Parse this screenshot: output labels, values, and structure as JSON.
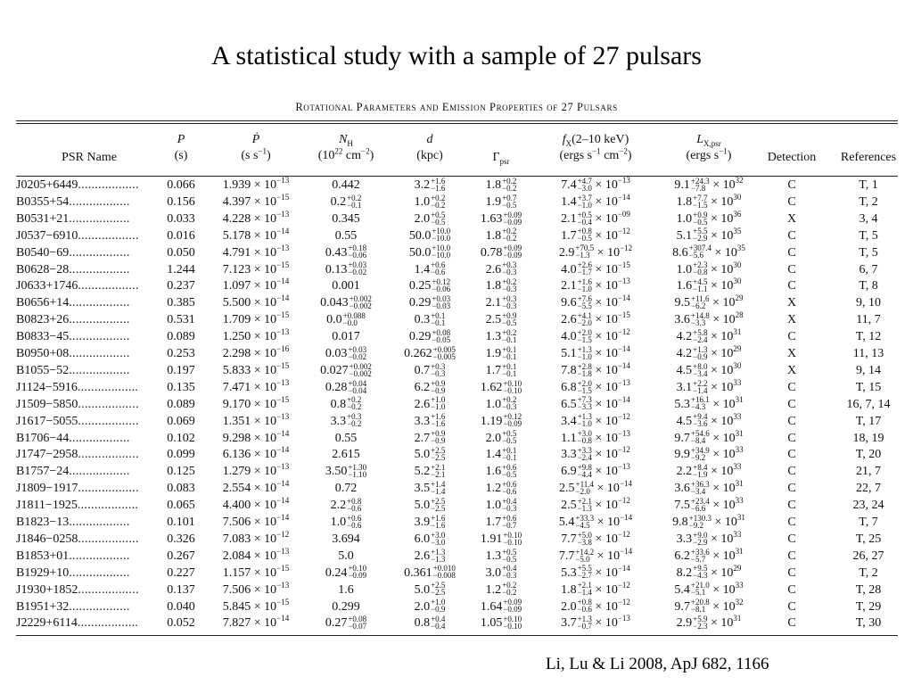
{
  "slide": {
    "title": "A statistical study with a sample of 27 pulsars",
    "citation": "Li, Lu & Li 2008, ApJ 682, 1166"
  },
  "table": {
    "caption": "Rotational Parameters and Emission Properties of 27 Pulsars",
    "headers": {
      "name": "PSR Name",
      "p_l1": "P",
      "p_l2": "(s)",
      "pdot_l1": "Ṗ",
      "pdot_l2": "(s s",
      "nh_l1": "N",
      "nh_sub": "H",
      "nh_l2": "(10",
      "d_l1": "d",
      "d_l2": "(kpc)",
      "gamma": "Γ",
      "gamma_sub": "psr",
      "fx_l1": "f",
      "fx_sub": "X",
      "fx_l1b": "(2–10 keV)",
      "fx_l2": "(ergs s",
      "lx_l1": "L",
      "lx_sub": "X,psr",
      "lx_l2": "(ergs s",
      "detection": "Detection",
      "references": "References"
    },
    "rows": [
      {
        "name": "J0205+6449",
        "p": "0.066",
        "pdot_m": "1.939",
        "pdot_e": "−13",
        "nh": "0.442",
        "nh_up": "",
        "nh_lo": "",
        "d": "3.2",
        "d_up": "+1.6",
        "d_lo": "−1.6",
        "g": "1.8",
        "g_up": "+0.2",
        "g_lo": "−0.2",
        "fx": "7.4",
        "fx_up": "+4.7",
        "fx_lo": "−3.0",
        "fx_e": "−13",
        "lx": "9.1",
        "lx_up": "+24.3",
        "lx_lo": "−7.8",
        "lx_e": "32",
        "det": "C",
        "ref": "T, 1"
      },
      {
        "name": "B0355+54",
        "p": "0.156",
        "pdot_m": "4.397",
        "pdot_e": "−15",
        "nh": "0.2",
        "nh_up": "+0.2",
        "nh_lo": "−0.1",
        "d": "1.0",
        "d_up": "+0.2",
        "d_lo": "−0.2",
        "g": "1.9",
        "g_up": "+0.7",
        "g_lo": "−0.5",
        "fx": "1.4",
        "fx_up": "+3.7",
        "fx_lo": "−1.0",
        "fx_e": "−14",
        "lx": "1.8",
        "lx_up": "+7.7",
        "lx_lo": "−1.5",
        "lx_e": "30",
        "det": "C",
        "ref": "T, 2"
      },
      {
        "name": "B0531+21",
        "p": "0.033",
        "pdot_m": "4.228",
        "pdot_e": "−13",
        "nh": "0.345",
        "nh_up": "",
        "nh_lo": "",
        "d": "2.0",
        "d_up": "+0.5",
        "d_lo": "−0.5",
        "g": "1.63",
        "g_up": "+0.09",
        "g_lo": "−0.09",
        "fx": "2.1",
        "fx_up": "+0.5",
        "fx_lo": "−0.4",
        "fx_e": "−09",
        "lx": "1.0",
        "lx_up": "+0.9",
        "lx_lo": "−0.5",
        "lx_e": "36",
        "det": "X",
        "ref": "3, 4"
      },
      {
        "name": "J0537−6910",
        "p": "0.016",
        "pdot_m": "5.178",
        "pdot_e": "−14",
        "nh": "0.55",
        "nh_up": "",
        "nh_lo": "",
        "d": "50.0",
        "d_up": "+10.0",
        "d_lo": "−10.0",
        "g": "1.8",
        "g_up": "+0.2",
        "g_lo": "−0.2",
        "fx": "1.7",
        "fx_up": "+0.8",
        "fx_lo": "−0.5",
        "fx_e": "−12",
        "lx": "5.1",
        "lx_up": "+5.5",
        "lx_lo": "−2.9",
        "lx_e": "35",
        "det": "C",
        "ref": "T, 5"
      },
      {
        "name": "B0540−69",
        "p": "0.050",
        "pdot_m": "4.791",
        "pdot_e": "−13",
        "nh": "0.43",
        "nh_up": "+0.18",
        "nh_lo": "−0.06",
        "d": "50.0",
        "d_up": "+10.0",
        "d_lo": "−10.0",
        "g": "0.78",
        "g_up": "+0.09",
        "g_lo": "−0.09",
        "fx": "2.9",
        "fx_up": "+70.5",
        "fx_lo": "−1.3",
        "fx_e": "−12",
        "lx": "8.6",
        "lx_up": "+307.4",
        "lx_lo": "−5.6",
        "lx_e": "35",
        "det": "C",
        "ref": "T, 5"
      },
      {
        "name": "B0628−28",
        "p": "1.244",
        "pdot_m": "7.123",
        "pdot_e": "−15",
        "nh": "0.13",
        "nh_up": "+0.03",
        "nh_lo": "−0.02",
        "d": "1.4",
        "d_up": "+0.6",
        "d_lo": "−0.6",
        "g": "2.6",
        "g_up": "+0.3",
        "g_lo": "−0.3",
        "fx": "4.0",
        "fx_up": "+2.6",
        "fx_lo": "−1.7",
        "fx_e": "−15",
        "lx": "1.0",
        "lx_up": "+2.3",
        "lx_lo": "−0.8",
        "lx_e": "30",
        "det": "C",
        "ref": "6, 7"
      },
      {
        "name": "J0633+1746",
        "p": "0.237",
        "pdot_m": "1.097",
        "pdot_e": "−14",
        "nh": "0.001",
        "nh_up": "",
        "nh_lo": "",
        "d": "0.25",
        "d_up": "+0.12",
        "d_lo": "−0.06",
        "g": "1.8",
        "g_up": "+0.2",
        "g_lo": "−0.3",
        "fx": "2.1",
        "fx_up": "+1.6",
        "fx_lo": "−1.0",
        "fx_e": "−13",
        "lx": "1.6",
        "lx_up": "+4.5",
        "lx_lo": "−1.1",
        "lx_e": "30",
        "det": "C",
        "ref": "T, 8"
      },
      {
        "name": "B0656+14",
        "p": "0.385",
        "pdot_m": "5.500",
        "pdot_e": "−14",
        "nh": "0.043",
        "nh_up": "+0.002",
        "nh_lo": "−0.002",
        "d": "0.29",
        "d_up": "+0.03",
        "d_lo": "−0.03",
        "g": "2.1",
        "g_up": "+0.3",
        "g_lo": "−0.3",
        "fx": "9.6",
        "fx_up": "+7.6",
        "fx_lo": "−5.5",
        "fx_e": "−14",
        "lx": "9.5",
        "lx_up": "+11.6",
        "lx_lo": "−6.2",
        "lx_e": "29",
        "det": "X",
        "ref": "9, 10"
      },
      {
        "name": "B0823+26",
        "p": "0.531",
        "pdot_m": "1.709",
        "pdot_e": "−15",
        "nh": "0.0",
        "nh_up": "+0.088",
        "nh_lo": "−0.0",
        "d": "0.3",
        "d_up": "+0.1",
        "d_lo": "−0.1",
        "g": "2.5",
        "g_up": "+0.9",
        "g_lo": "−0.5",
        "fx": "2.6",
        "fx_up": "+4.1",
        "fx_lo": "−2.0",
        "fx_e": "−15",
        "lx": "3.6",
        "lx_up": "+14.8",
        "lx_lo": "−3.3",
        "lx_e": "28",
        "det": "X",
        "ref": "11, 7"
      },
      {
        "name": "B0833−45",
        "p": "0.089",
        "pdot_m": "1.250",
        "pdot_e": "−13",
        "nh": "0.017",
        "nh_up": "",
        "nh_lo": "",
        "d": "0.29",
        "d_up": "+0.08",
        "d_lo": "−0.05",
        "g": "1.3",
        "g_up": "+0.2",
        "g_lo": "−0.1",
        "fx": "4.0",
        "fx_up": "+2.0",
        "fx_lo": "−1.5",
        "fx_e": "−12",
        "lx": "4.2",
        "lx_up": "+5.8",
        "lx_lo": "−2.4",
        "lx_e": "31",
        "det": "C",
        "ref": "T, 12"
      },
      {
        "name": "B0950+08",
        "p": "0.253",
        "pdot_m": "2.298",
        "pdot_e": "−16",
        "nh": "0.03",
        "nh_up": "+0.03",
        "nh_lo": "−0.02",
        "d": "0.262",
        "d_up": "+0.005",
        "d_lo": "−0.005",
        "g": "1.9",
        "g_up": "+0.1",
        "g_lo": "−0.1",
        "fx": "5.1",
        "fx_up": "+1.3",
        "fx_lo": "−1.0",
        "fx_e": "−14",
        "lx": "4.2",
        "lx_up": "+1.3",
        "lx_lo": "−0.9",
        "lx_e": "29",
        "det": "X",
        "ref": "11, 13"
      },
      {
        "name": "B1055−52",
        "p": "0.197",
        "pdot_m": "5.833",
        "pdot_e": "−15",
        "nh": "0.027",
        "nh_up": "+0.002",
        "nh_lo": "−0.002",
        "d": "0.7",
        "d_up": "+0.3",
        "d_lo": "−0.3",
        "g": "1.7",
        "g_up": "+0.1",
        "g_lo": "−0.1",
        "fx": "7.8",
        "fx_up": "+2.8",
        "fx_lo": "−1.8",
        "fx_e": "−14",
        "lx": "4.5",
        "lx_up": "+8.0",
        "lx_lo": "−3.4",
        "lx_e": "30",
        "det": "X",
        "ref": "9, 14"
      },
      {
        "name": "J1124−5916",
        "p": "0.135",
        "pdot_m": "7.471",
        "pdot_e": "−13",
        "nh": "0.28",
        "nh_up": "+0.04",
        "nh_lo": "−0.04",
        "d": "6.2",
        "d_up": "+0.9",
        "d_lo": "−0.9",
        "g": "1.62",
        "g_up": "+0.10",
        "g_lo": "−0.10",
        "fx": "6.8",
        "fx_up": "+2.0",
        "fx_lo": "−1.5",
        "fx_e": "−13",
        "lx": "3.1",
        "lx_up": "+2.2",
        "lx_lo": "−1.4",
        "lx_e": "33",
        "det": "C",
        "ref": "T, 15"
      },
      {
        "name": "J1509−5850",
        "p": "0.089",
        "pdot_m": "9.170",
        "pdot_e": "−15",
        "nh": "0.8",
        "nh_up": "+0.2",
        "nh_lo": "−0.2",
        "d": "2.6",
        "d_up": "+1.0",
        "d_lo": "−1.0",
        "g": "1.0",
        "g_up": "+0.2",
        "g_lo": "−0.3",
        "fx": "6.5",
        "fx_up": "+7.3",
        "fx_lo": "−3.3",
        "fx_e": "−14",
        "lx": "5.3",
        "lx_up": "+16.1",
        "lx_lo": "−4.3",
        "lx_e": "31",
        "det": "C",
        "ref": "16, 7, 14"
      },
      {
        "name": "J1617−5055",
        "p": "0.069",
        "pdot_m": "1.351",
        "pdot_e": "−13",
        "nh": "3.3",
        "nh_up": "+0.3",
        "nh_lo": "−0.2",
        "d": "3.3",
        "d_up": "+1.6",
        "d_lo": "−1.6",
        "g": "1.19",
        "g_up": "+0.12",
        "g_lo": "−0.09",
        "fx": "3.4",
        "fx_up": "+1.3",
        "fx_lo": "−1.0",
        "fx_e": "−12",
        "lx": "4.5",
        "lx_up": "+9.4",
        "lx_lo": "−3.6",
        "lx_e": "33",
        "det": "C",
        "ref": "T, 17"
      },
      {
        "name": "B1706−44",
        "p": "0.102",
        "pdot_m": "9.298",
        "pdot_e": "−14",
        "nh": "0.55",
        "nh_up": "",
        "nh_lo": "",
        "d": "2.7",
        "d_up": "+0.9",
        "d_lo": "−0.9",
        "g": "2.0",
        "g_up": "+0.5",
        "g_lo": "−0.5",
        "fx": "1.1",
        "fx_up": "+3.0",
        "fx_lo": "−0.8",
        "fx_e": "−13",
        "lx": "9.7",
        "lx_up": "+54.6",
        "lx_lo": "−8.4",
        "lx_e": "31",
        "det": "C",
        "ref": "18, 19"
      },
      {
        "name": "J1747−2958",
        "p": "0.099",
        "pdot_m": "6.136",
        "pdot_e": "−14",
        "nh": "2.615",
        "nh_up": "",
        "nh_lo": "",
        "d": "5.0",
        "d_up": "+2.5",
        "d_lo": "−2.5",
        "g": "1.4",
        "g_up": "+0.1",
        "g_lo": "−0.1",
        "fx": "3.3",
        "fx_up": "+3.3",
        "fx_lo": "−2.4",
        "fx_e": "−12",
        "lx": "9.9",
        "lx_up": "+34.9",
        "lx_lo": "−9.2",
        "lx_e": "33",
        "det": "C",
        "ref": "T, 20"
      },
      {
        "name": "B1757−24",
        "p": "0.125",
        "pdot_m": "1.279",
        "pdot_e": "−13",
        "nh": "3.50",
        "nh_up": "+1.30",
        "nh_lo": "−1.10",
        "d": "5.2",
        "d_up": "+2.1",
        "d_lo": "−2.1",
        "g": "1.6",
        "g_up": "+0.6",
        "g_lo": "−0.5",
        "fx": "6.9",
        "fx_up": "+9.8",
        "fx_lo": "−4.4",
        "fx_e": "−13",
        "lx": "2.2",
        "lx_up": "+8.4",
        "lx_lo": "−1.9",
        "lx_e": "33",
        "det": "C",
        "ref": "21, 7"
      },
      {
        "name": "J1809−1917",
        "p": "0.083",
        "pdot_m": "2.554",
        "pdot_e": "−14",
        "nh": "0.72",
        "nh_up": "",
        "nh_lo": "",
        "d": "3.5",
        "d_up": "+1.4",
        "d_lo": "−1.4",
        "g": "1.2",
        "g_up": "+0.6",
        "g_lo": "−0.6",
        "fx": "2.5",
        "fx_up": "+11.4",
        "fx_lo": "−2.0",
        "fx_e": "−14",
        "lx": "3.6",
        "lx_up": "+36.3",
        "lx_lo": "−3.4",
        "lx_e": "31",
        "det": "C",
        "ref": "22, 7"
      },
      {
        "name": "J1811−1925",
        "p": "0.065",
        "pdot_m": "4.400",
        "pdot_e": "−14",
        "nh": "2.2",
        "nh_up": "+0.8",
        "nh_lo": "−0.6",
        "d": "5.0",
        "d_up": "+2.5",
        "d_lo": "−2.5",
        "g": "1.0",
        "g_up": "+0.4",
        "g_lo": "−0.3",
        "fx": "2.5",
        "fx_up": "+2.1",
        "fx_lo": "−1.3",
        "fx_e": "−12",
        "lx": "7.5",
        "lx_up": "+23.4",
        "lx_lo": "−6.6",
        "lx_e": "33",
        "det": "C",
        "ref": "23, 24"
      },
      {
        "name": "B1823−13",
        "p": "0.101",
        "pdot_m": "7.506",
        "pdot_e": "−14",
        "nh": "1.0",
        "nh_up": "+0.6",
        "nh_lo": "−0.6",
        "d": "3.9",
        "d_up": "+1.6",
        "d_lo": "−1.6",
        "g": "1.7",
        "g_up": "+0.6",
        "g_lo": "−0.7",
        "fx": "5.4",
        "fx_up": "+33.3",
        "fx_lo": "−4.5",
        "fx_e": "−14",
        "lx": "9.8",
        "lx_up": "+130.3",
        "lx_lo": "−9.2",
        "lx_e": "31",
        "det": "C",
        "ref": "T, 7"
      },
      {
        "name": "J1846−0258",
        "p": "0.326",
        "pdot_m": "7.083",
        "pdot_e": "−12",
        "nh": "3.694",
        "nh_up": "",
        "nh_lo": "",
        "d": "6.0",
        "d_up": "+3.0",
        "d_lo": "−3.0",
        "g": "1.91",
        "g_up": "+0.10",
        "g_lo": "−0.10",
        "fx": "7.7",
        "fx_up": "+5.0",
        "fx_lo": "−3.8",
        "fx_e": "−12",
        "lx": "3.3",
        "lx_up": "+9.0",
        "lx_lo": "−2.9",
        "lx_e": "33",
        "det": "C",
        "ref": "T, 25"
      },
      {
        "name": "B1853+01",
        "p": "0.267",
        "pdot_m": "2.084",
        "pdot_e": "−13",
        "nh": "5.0",
        "nh_up": "",
        "nh_lo": "",
        "d": "2.6",
        "d_up": "+1.3",
        "d_lo": "−1.3",
        "g": "1.3",
        "g_up": "+0.5",
        "g_lo": "−0.5",
        "fx": "7.7",
        "fx_up": "+14.2",
        "fx_lo": "−5.0",
        "fx_e": "−14",
        "lx": "6.2",
        "lx_up": "+33.6",
        "lx_lo": "−5.7",
        "lx_e": "31",
        "det": "C",
        "ref": "26, 27"
      },
      {
        "name": "B1929+10",
        "p": "0.227",
        "pdot_m": "1.157",
        "pdot_e": "−15",
        "nh": "0.24",
        "nh_up": "+0.10",
        "nh_lo": "−0.09",
        "d": "0.361",
        "d_up": "+0.010",
        "d_lo": "−0.008",
        "g": "3.0",
        "g_up": "+0.4",
        "g_lo": "−0.3",
        "fx": "5.3",
        "fx_up": "+5.5",
        "fx_lo": "−2.7",
        "fx_e": "−14",
        "lx": "8.2",
        "lx_up": "+9.5",
        "lx_lo": "−4.3",
        "lx_e": "29",
        "det": "C",
        "ref": "T, 2"
      },
      {
        "name": "J1930+1852",
        "p": "0.137",
        "pdot_m": "7.506",
        "pdot_e": "−13",
        "nh": "1.6",
        "nh_up": "",
        "nh_lo": "",
        "d": "5.0",
        "d_up": "+2.5",
        "d_lo": "−2.5",
        "g": "1.2",
        "g_up": "+0.2",
        "g_lo": "−0.2",
        "fx": "1.8",
        "fx_up": "+2.1",
        "fx_lo": "−1.4",
        "fx_e": "−12",
        "lx": "5.4",
        "lx_up": "+21.0",
        "lx_lo": "−5.1",
        "lx_e": "33",
        "det": "C",
        "ref": "T, 28"
      },
      {
        "name": "B1951+32",
        "p": "0.040",
        "pdot_m": "5.845",
        "pdot_e": "−15",
        "nh": "0.299",
        "nh_up": "",
        "nh_lo": "",
        "d": "2.0",
        "d_up": "+1.0",
        "d_lo": "−0.9",
        "g": "1.64",
        "g_up": "+0.09",
        "g_lo": "−0.09",
        "fx": "2.0",
        "fx_up": "+0.8",
        "fx_lo": "−0.6",
        "fx_e": "−12",
        "lx": "9.7",
        "lx_up": "+20.8",
        "lx_lo": "−8.1",
        "lx_e": "32",
        "det": "C",
        "ref": "T, 29"
      },
      {
        "name": "J2229+6114",
        "p": "0.052",
        "pdot_m": "7.827",
        "pdot_e": "−14",
        "nh": "0.27",
        "nh_up": "+0.08",
        "nh_lo": "−0.07",
        "d": "0.8",
        "d_up": "+0.4",
        "d_lo": "−0.4",
        "g": "1.05",
        "g_up": "+0.10",
        "g_lo": "−0.10",
        "fx": "3.7",
        "fx_up": "+1.3",
        "fx_lo": "−0.7",
        "fx_e": "−13",
        "lx": "2.9",
        "lx_up": "+5.9",
        "lx_lo": "−2.3",
        "lx_e": "31",
        "det": "C",
        "ref": "T, 30"
      }
    ]
  }
}
